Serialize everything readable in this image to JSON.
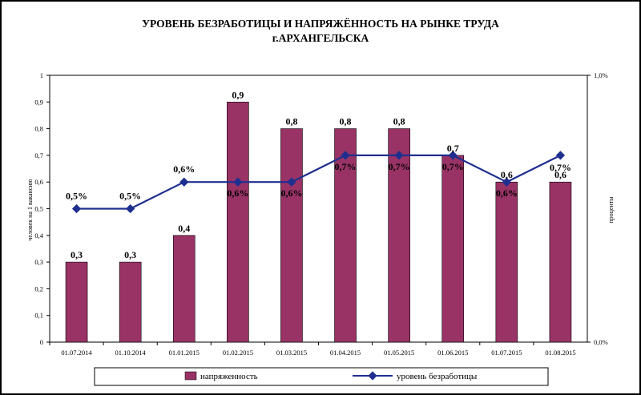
{
  "chart_data": {
    "type": "bar",
    "title": "УРОВЕНЬ БЕЗРАБОТИЦЫ И НАПРЯЖЁННОСТЬ НА РЫНКЕ ТРУДА",
    "subtitle": "г.АРХАНГЕЛЬСКА",
    "categories": [
      "01.07.2014",
      "01.10.2014",
      "01.01.2015",
      "01.02.2015",
      "01.03.2015",
      "01.04.2015",
      "01.05.2015",
      "01.06.2015",
      "01.07.2015",
      "01.08.2015"
    ],
    "series": [
      {
        "name": "напряженность",
        "type": "bar",
        "axis": "left",
        "color": "#993366",
        "values": [
          0.3,
          0.3,
          0.4,
          0.9,
          0.8,
          0.8,
          0.8,
          0.7,
          0.6,
          0.6
        ],
        "labels": [
          "0,3",
          "0,3",
          "0,4",
          "0,9",
          "0,8",
          "0,8",
          "0,8",
          "0,7",
          "0,6",
          "0,6"
        ]
      },
      {
        "name": "уровень безработицы",
        "type": "line",
        "axis": "right",
        "color": "#1f2f8f",
        "values": [
          0.5,
          0.5,
          0.6,
          0.6,
          0.6,
          0.7,
          0.7,
          0.7,
          0.6,
          0.7
        ],
        "labels": [
          "0,5%",
          "0,5%",
          "0,6%",
          "0,6%",
          "0,6%",
          "0,7%",
          "0,7%",
          "0,7%",
          "0,6%",
          "0,7%"
        ]
      }
    ],
    "ylabel": "человек на 1 вакансию",
    "y2label": "проценты",
    "ylim": [
      0,
      1
    ],
    "y2lim": [
      0,
      1
    ],
    "yticks": [
      "0",
      "0,1",
      "0,2",
      "0,3",
      "0,4",
      "0,5",
      "0,6",
      "0,7",
      "0,8",
      "0,9",
      "1"
    ],
    "y2ticks": [
      "0,0%",
      "1,0%"
    ],
    "grid": false,
    "legend": "bottom"
  }
}
